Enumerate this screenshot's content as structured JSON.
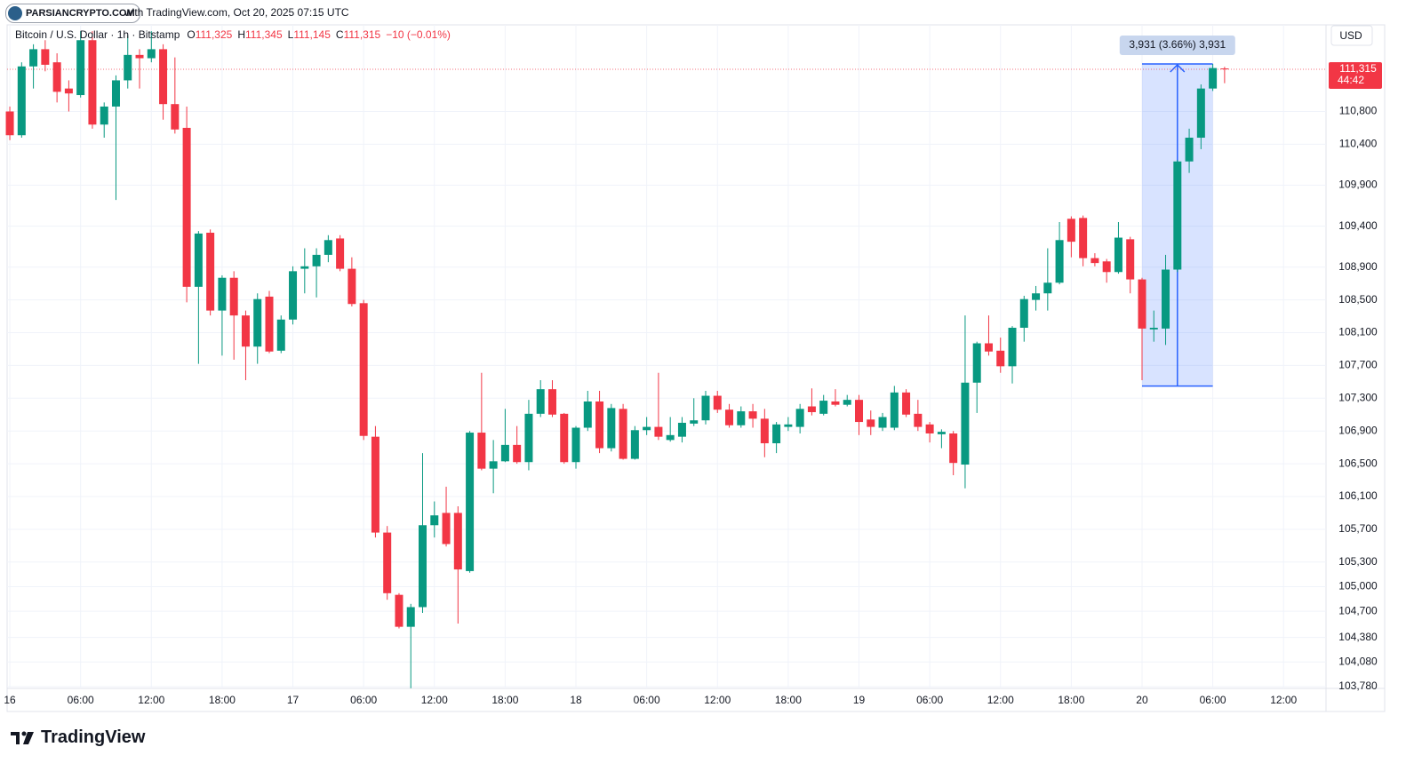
{
  "header": {
    "watermark": "PARSIANCRYPTO.COM",
    "published": "with TradingView.com, Oct 20, 2025 07:15 UTC"
  },
  "legend": {
    "symbol": "Bitcoin / U.S. Dollar · 1h · Bitstamp",
    "items": [
      {
        "key": "O",
        "value": "111,325"
      },
      {
        "key": "H",
        "value": "111,345"
      },
      {
        "key": "L",
        "value": "111,145"
      },
      {
        "key": "C",
        "value": "111,315"
      }
    ],
    "change": "−10 (−0.01%)"
  },
  "footer": {
    "brand": "TradingView"
  },
  "chart_data": {
    "type": "candlestick",
    "currency": "USD",
    "up_color": "#089981",
    "down_color": "#f23645",
    "grid": true,
    "open": [
      110800,
      110510,
      111350,
      111560,
      111400,
      111080,
      111000,
      111670,
      110640,
      110860,
      111180,
      111490,
      111450,
      111560,
      110890,
      110600,
      108660,
      109320,
      108370,
      108770,
      108310,
      107930,
      108540,
      107880,
      108260,
      108880,
      108910,
      109050,
      109250,
      108880,
      108460,
      106830,
      105660,
      104900,
      104510,
      104750,
      105750,
      105900,
      105900,
      105190,
      106880,
      106440,
      106530,
      106730,
      106520,
      107110,
      107410,
      107110,
      106520,
      106940,
      107260,
      106690,
      107170,
      106560,
      106910,
      106950,
      106790,
      106830,
      106990,
      107030,
      107330,
      107160,
      106970,
      107140,
      107050,
      106750,
      106950,
      106950,
      107200,
      107110,
      107260,
      107220,
      107280,
      107040,
      106940,
      106940,
      107370,
      107110,
      106980,
      106860,
      106870,
      106490,
      107490,
      107970,
      107880,
      107690,
      108160,
      108500,
      108580,
      108710,
      109490,
      109500,
      109010,
      108970,
      108840,
      109240,
      108750,
      108140,
      108150,
      108870,
      110190,
      110480,
      111080,
      111325
    ],
    "high": [
      110860,
      111400,
      111620,
      111670,
      111510,
      111180,
      111780,
      111780,
      110910,
      111240,
      111730,
      111560,
      111780,
      111620,
      111460,
      110860,
      109340,
      109360,
      108800,
      108850,
      108370,
      108580,
      108610,
      108310,
      108910,
      109130,
      109130,
      109290,
      109290,
      109020,
      108500,
      106960,
      105740,
      104920,
      104790,
      106630,
      106040,
      106220,
      105980,
      106900,
      107610,
      106790,
      107170,
      106960,
      107280,
      107520,
      107520,
      107120,
      106960,
      107390,
      107390,
      107230,
      107230,
      106960,
      107070,
      107610,
      107070,
      107070,
      107300,
      107390,
      107390,
      107230,
      107200,
      107230,
      107170,
      107010,
      107070,
      107230,
      107420,
      107340,
      107410,
      107340,
      107340,
      107150,
      107120,
      107450,
      107410,
      107280,
      107010,
      106920,
      106900,
      108310,
      107990,
      108310,
      108040,
      108180,
      108550,
      108670,
      109130,
      109450,
      109520,
      109530,
      109070,
      109000,
      109450,
      109270,
      108770,
      108370,
      109050,
      110210,
      110590,
      111130,
      111380,
      111345
    ],
    "low": [
      110450,
      110480,
      111080,
      111290,
      110910,
      110800,
      110970,
      110590,
      110480,
      109720,
      111080,
      111080,
      111400,
      110700,
      110530,
      108470,
      107720,
      108310,
      107820,
      107770,
      107520,
      107720,
      107850,
      107850,
      108200,
      108580,
      108530,
      108960,
      108850,
      108420,
      106790,
      105600,
      104840,
      104490,
      103760,
      104680,
      105600,
      105490,
      104550,
      105170,
      106420,
      106140,
      106520,
      106500,
      106420,
      107070,
      107070,
      106500,
      106440,
      106900,
      106630,
      106650,
      106550,
      106550,
      106850,
      106790,
      106770,
      106760,
      106960,
      106980,
      107120,
      106940,
      106940,
      106940,
      106580,
      106630,
      106900,
      106870,
      107090,
      107090,
      107200,
      107200,
      106850,
      106850,
      106900,
      106910,
      107070,
      106900,
      106760,
      106690,
      106360,
      106200,
      107120,
      107820,
      107610,
      107480,
      107990,
      108370,
      108370,
      108690,
      109020,
      108910,
      108910,
      108710,
      108820,
      108580,
      107520,
      107990,
      107950,
      108840,
      110050,
      110340,
      111050,
      111145
    ],
    "close": [
      110510,
      111350,
      111560,
      111370,
      111040,
      111020,
      111670,
      110640,
      110860,
      111180,
      111490,
      111450,
      111560,
      110890,
      110580,
      108660,
      109310,
      108370,
      108770,
      108310,
      107930,
      108510,
      107870,
      108260,
      108850,
      108910,
      109050,
      109230,
      108880,
      108450,
      106840,
      105660,
      104920,
      104510,
      104750,
      105750,
      105870,
      105520,
      105210,
      106880,
      106440,
      106530,
      106730,
      106520,
      107110,
      107410,
      107100,
      106520,
      106940,
      107260,
      106690,
      107180,
      106560,
      106910,
      106950,
      106830,
      106850,
      107000,
      107030,
      107330,
      107160,
      106970,
      107140,
      107050,
      106750,
      106980,
      106980,
      107170,
      107130,
      107270,
      107220,
      107280,
      107010,
      106950,
      107070,
      107370,
      107100,
      106950,
      106870,
      106890,
      106510,
      107490,
      107970,
      107870,
      107690,
      108160,
      108510,
      108580,
      108710,
      109230,
      109210,
      109010,
      108950,
      108840,
      109260,
      108750,
      108150,
      108160,
      108870,
      110190,
      110480,
      111080,
      111330,
      111315
    ],
    "xlim": [
      -0.23,
      111.6
    ],
    "xticks": [
      {
        "value": 0,
        "label": "16"
      },
      {
        "value": 6,
        "label": "06:00"
      },
      {
        "value": 12,
        "label": "12:00"
      },
      {
        "value": 18,
        "label": "18:00"
      },
      {
        "value": 24,
        "label": "17"
      },
      {
        "value": 30,
        "label": "06:00"
      },
      {
        "value": 36,
        "label": "12:00"
      },
      {
        "value": 42,
        "label": "18:00"
      },
      {
        "value": 48,
        "label": "18"
      },
      {
        "value": 54,
        "label": "06:00"
      },
      {
        "value": 60,
        "label": "12:00"
      },
      {
        "value": 66,
        "label": "18:00"
      },
      {
        "value": 72,
        "label": "19"
      },
      {
        "value": 78,
        "label": "06:00"
      },
      {
        "value": 84,
        "label": "12:00"
      },
      {
        "value": 90,
        "label": "18:00"
      },
      {
        "value": 96,
        "label": "20"
      },
      {
        "value": 102,
        "label": "06:00"
      },
      {
        "value": 108,
        "label": "12:00"
      }
    ],
    "ylim": [
      103758,
      111857
    ],
    "yticks": [
      {
        "value": 110800,
        "label": "110,800"
      },
      {
        "value": 110400,
        "label": "110,400"
      },
      {
        "value": 109900,
        "label": "109,900"
      },
      {
        "value": 109400,
        "label": "109,400"
      },
      {
        "value": 108900,
        "label": "108,900"
      },
      {
        "value": 108500,
        "label": "108,500"
      },
      {
        "value": 108100,
        "label": "108,100"
      },
      {
        "value": 107700,
        "label": "107,700"
      },
      {
        "value": 107300,
        "label": "107,300"
      },
      {
        "value": 106900,
        "label": "106,900"
      },
      {
        "value": 106500,
        "label": "106,500"
      },
      {
        "value": 106100,
        "label": "106,100"
      },
      {
        "value": 105700,
        "label": "105,700"
      },
      {
        "value": 105300,
        "label": "105,300"
      },
      {
        "value": 105000,
        "label": "105,000"
      },
      {
        "value": 104700,
        "label": "104,700"
      },
      {
        "value": 104380,
        "label": "104,380"
      },
      {
        "value": 104080,
        "label": "104,080"
      },
      {
        "value": 103780,
        "label": "103,780"
      }
    ],
    "last_price": {
      "value": 111315,
      "label": "111,315",
      "countdown": "44:42"
    },
    "measure": {
      "x_start": 96,
      "x_end": 102,
      "from": 107449,
      "to": 111380,
      "label": "3,931 (3.66%) 3,931"
    }
  }
}
